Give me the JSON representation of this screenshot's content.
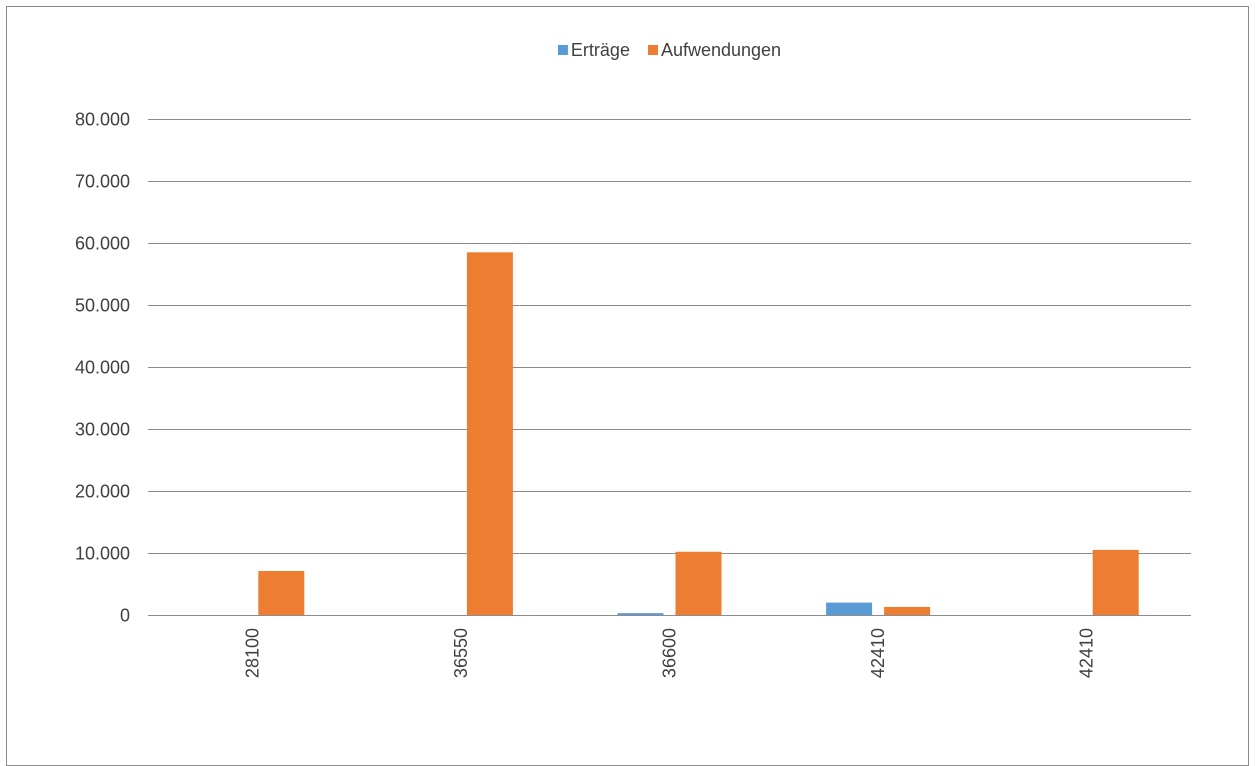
{
  "chart_data": {
    "type": "bar",
    "title": "",
    "xlabel": "",
    "ylabel": "",
    "categories": [
      "28100",
      "36550",
      "36600",
      "42410",
      "42410"
    ],
    "series": [
      {
        "name": "Erträge",
        "color": "#5b9bd5",
        "values": [
          0,
          0,
          300,
          2000,
          0
        ]
      },
      {
        "name": "Aufwendungen",
        "color": "#ed7d31",
        "values": [
          7100,
          58500,
          10200,
          1300,
          10500
        ]
      }
    ],
    "ylim": [
      0,
      80000
    ],
    "yticks": [
      {
        "value": 0,
        "label": "0"
      },
      {
        "value": 10000,
        "label": "10.000"
      },
      {
        "value": 20000,
        "label": "20.000"
      },
      {
        "value": 30000,
        "label": "30.000"
      },
      {
        "value": 40000,
        "label": "40.000"
      },
      {
        "value": 50000,
        "label": "50.000"
      },
      {
        "value": 60000,
        "label": "60.000"
      },
      {
        "value": 70000,
        "label": "70.000"
      },
      {
        "value": 80000,
        "label": "80.000"
      }
    ],
    "grid": true,
    "legend_position": "top-center",
    "gridline_color": "#8c8c8c",
    "label_color": "#404040"
  }
}
